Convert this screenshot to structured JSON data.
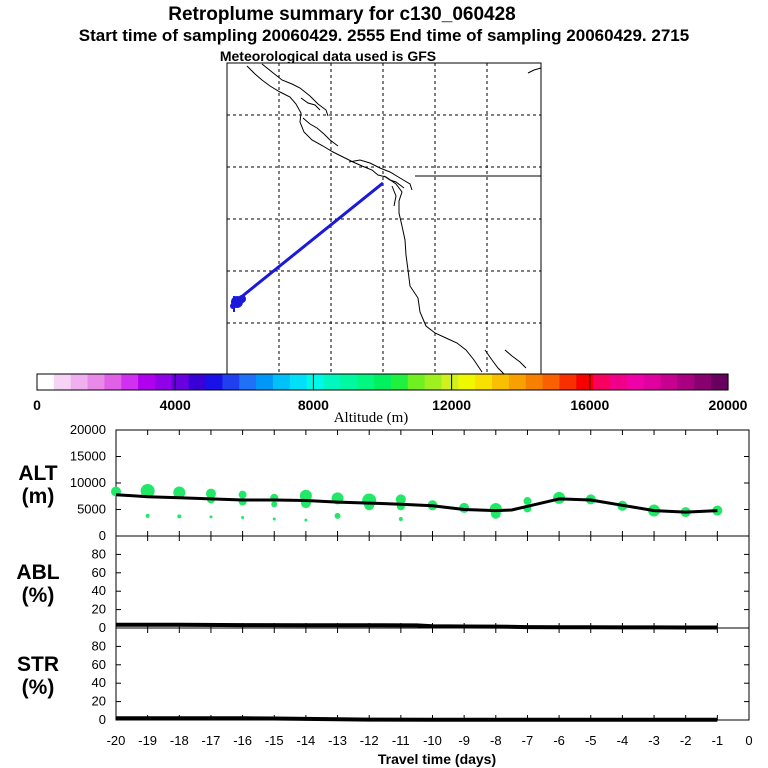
{
  "header": {
    "title": "Retroplume summary for c130_060428",
    "sampling": "Start time of sampling 20060429.  2555     End time of sampling 20060429.  2715",
    "met": "Meteorological data used is GFS"
  },
  "colors": {
    "track": "#1a1ad8",
    "dots": "#22e868",
    "line": "#000000"
  },
  "colorbar": {
    "label": "Altitude (m)",
    "tick_labels": [
      "0",
      "4000",
      "8000",
      "12000",
      "16000",
      "20000"
    ],
    "swatches": [
      "#ffffff",
      "#f6d4f6",
      "#f0b0f0",
      "#e98ae9",
      "#e060e8",
      "#d030f0",
      "#b000f0",
      "#9000e8",
      "#6800e0",
      "#3a00d8",
      "#1a10e8",
      "#2040f0",
      "#2070f8",
      "#0098f8",
      "#00c0f8",
      "#00e0f8",
      "#00f8e8",
      "#00f8c0",
      "#00f8a0",
      "#00f880",
      "#00f060",
      "#20f040",
      "#70f020",
      "#a0f020",
      "#d0f020",
      "#f0f800",
      "#f8e000",
      "#f8c000",
      "#f8a000",
      "#f88000",
      "#f86000",
      "#f83000",
      "#f80000",
      "#f80060",
      "#f00088",
      "#f000a8",
      "#e000a0",
      "#c80090",
      "#a80080",
      "#880070",
      "#680060"
    ]
  },
  "chart_data": [
    {
      "type": "line",
      "panel": "ALT",
      "ylabel": "ALT",
      "yunit": "(m)",
      "ylim": [
        0,
        20000
      ],
      "yticks": [
        0,
        5000,
        10000,
        15000,
        20000
      ],
      "xlim": [
        -20,
        0
      ],
      "xlabel": "Travel time (days)",
      "xticks": [
        -20,
        -19,
        -18,
        -17,
        -16,
        -15,
        -14,
        -13,
        -12,
        -11,
        -10,
        -9,
        -8,
        -7,
        -6,
        -5,
        -4,
        -3,
        -2,
        -1,
        0
      ],
      "xtick_labels": [
        "-20",
        "-19",
        "-18",
        "-17",
        "-16",
        "-15",
        "-14",
        "-13",
        "-12",
        "-11",
        "-10",
        "-9",
        "-8",
        "-7",
        "-6",
        "-5",
        "-4",
        "-3",
        "-2",
        "-1",
        "0"
      ],
      "mean_line": {
        "x": [
          -20,
          -19,
          -18,
          -17,
          -16,
          -15,
          -14,
          -13,
          -12,
          -11,
          -10,
          -9,
          -8,
          -7.5,
          -7,
          -6,
          -5,
          -4,
          -3,
          -2,
          -1
        ],
        "y": [
          7800,
          7400,
          7200,
          7000,
          6800,
          6800,
          6700,
          6400,
          6200,
          6000,
          5700,
          5000,
          4800,
          4900,
          5600,
          7000,
          6800,
          5800,
          4800,
          4500,
          4800
        ]
      },
      "scatter": [
        {
          "x": -20,
          "y": 8400,
          "r": 5
        },
        {
          "x": -19,
          "y": 8500,
          "r": 7
        },
        {
          "x": -19,
          "y": 3800,
          "r": 2
        },
        {
          "x": -18,
          "y": 8200,
          "r": 6
        },
        {
          "x": -18,
          "y": 3700,
          "r": 2
        },
        {
          "x": -17,
          "y": 8000,
          "r": 5
        },
        {
          "x": -17,
          "y": 6900,
          "r": 4
        },
        {
          "x": -17,
          "y": 3600,
          "r": 1.5
        },
        {
          "x": -16,
          "y": 7800,
          "r": 4
        },
        {
          "x": -16,
          "y": 6500,
          "r": 4
        },
        {
          "x": -16,
          "y": 3500,
          "r": 1.5
        },
        {
          "x": -15,
          "y": 7200,
          "r": 4
        },
        {
          "x": -15,
          "y": 6000,
          "r": 3
        },
        {
          "x": -15,
          "y": 3200,
          "r": 1.5
        },
        {
          "x": -14,
          "y": 7600,
          "r": 6
        },
        {
          "x": -14,
          "y": 6200,
          "r": 5
        },
        {
          "x": -14,
          "y": 3000,
          "r": 1.5
        },
        {
          "x": -13,
          "y": 7100,
          "r": 6
        },
        {
          "x": -13,
          "y": 3800,
          "r": 3
        },
        {
          "x": -12,
          "y": 6700,
          "r": 7
        },
        {
          "x": -12,
          "y": 5800,
          "r": 5
        },
        {
          "x": -11,
          "y": 6900,
          "r": 5
        },
        {
          "x": -11,
          "y": 5600,
          "r": 4
        },
        {
          "x": -11,
          "y": 3200,
          "r": 2
        },
        {
          "x": -10,
          "y": 5800,
          "r": 5
        },
        {
          "x": -9,
          "y": 5300,
          "r": 5
        },
        {
          "x": -8,
          "y": 5100,
          "r": 6
        },
        {
          "x": -8,
          "y": 4200,
          "r": 5
        },
        {
          "x": -7,
          "y": 6600,
          "r": 4
        },
        {
          "x": -7,
          "y": 5200,
          "r": 4
        },
        {
          "x": -6,
          "y": 7200,
          "r": 6
        },
        {
          "x": -5,
          "y": 6900,
          "r": 5
        },
        {
          "x": -4,
          "y": 5700,
          "r": 5
        },
        {
          "x": -3,
          "y": 4800,
          "r": 6
        },
        {
          "x": -2,
          "y": 4500,
          "r": 5
        },
        {
          "x": -1,
          "y": 4800,
          "r": 5
        }
      ]
    },
    {
      "type": "line",
      "panel": "ABL",
      "ylabel": "ABL",
      "yunit": "(%)",
      "ylim": [
        0,
        100
      ],
      "yticks": [
        0,
        20,
        40,
        60,
        80
      ],
      "x": [
        -20,
        -18,
        -16,
        -14,
        -12,
        -10.5,
        -10,
        -9,
        -8,
        -7,
        -6,
        -5,
        -4,
        -3,
        -2,
        -1
      ],
      "y": [
        3.5,
        3.5,
        3.2,
        3.0,
        3.0,
        2.8,
        1.8,
        1.6,
        1.5,
        1.0,
        0.9,
        0.8,
        0.7,
        0.6,
        0.5,
        0.5
      ]
    },
    {
      "type": "line",
      "panel": "STR",
      "ylabel": "STR",
      "yunit": "(%)",
      "ylim": [
        0,
        100
      ],
      "yticks": [
        0,
        20,
        40,
        60,
        80
      ],
      "x": [
        -20,
        -18,
        -16,
        -15,
        -14,
        -13,
        -12,
        -10,
        -8,
        -6,
        -4,
        -2,
        -1
      ],
      "y": [
        2.0,
        2.0,
        1.8,
        1.6,
        1.2,
        0.9,
        0.4,
        0.3,
        0.2,
        0.2,
        0.2,
        0.2,
        0.2
      ]
    }
  ]
}
